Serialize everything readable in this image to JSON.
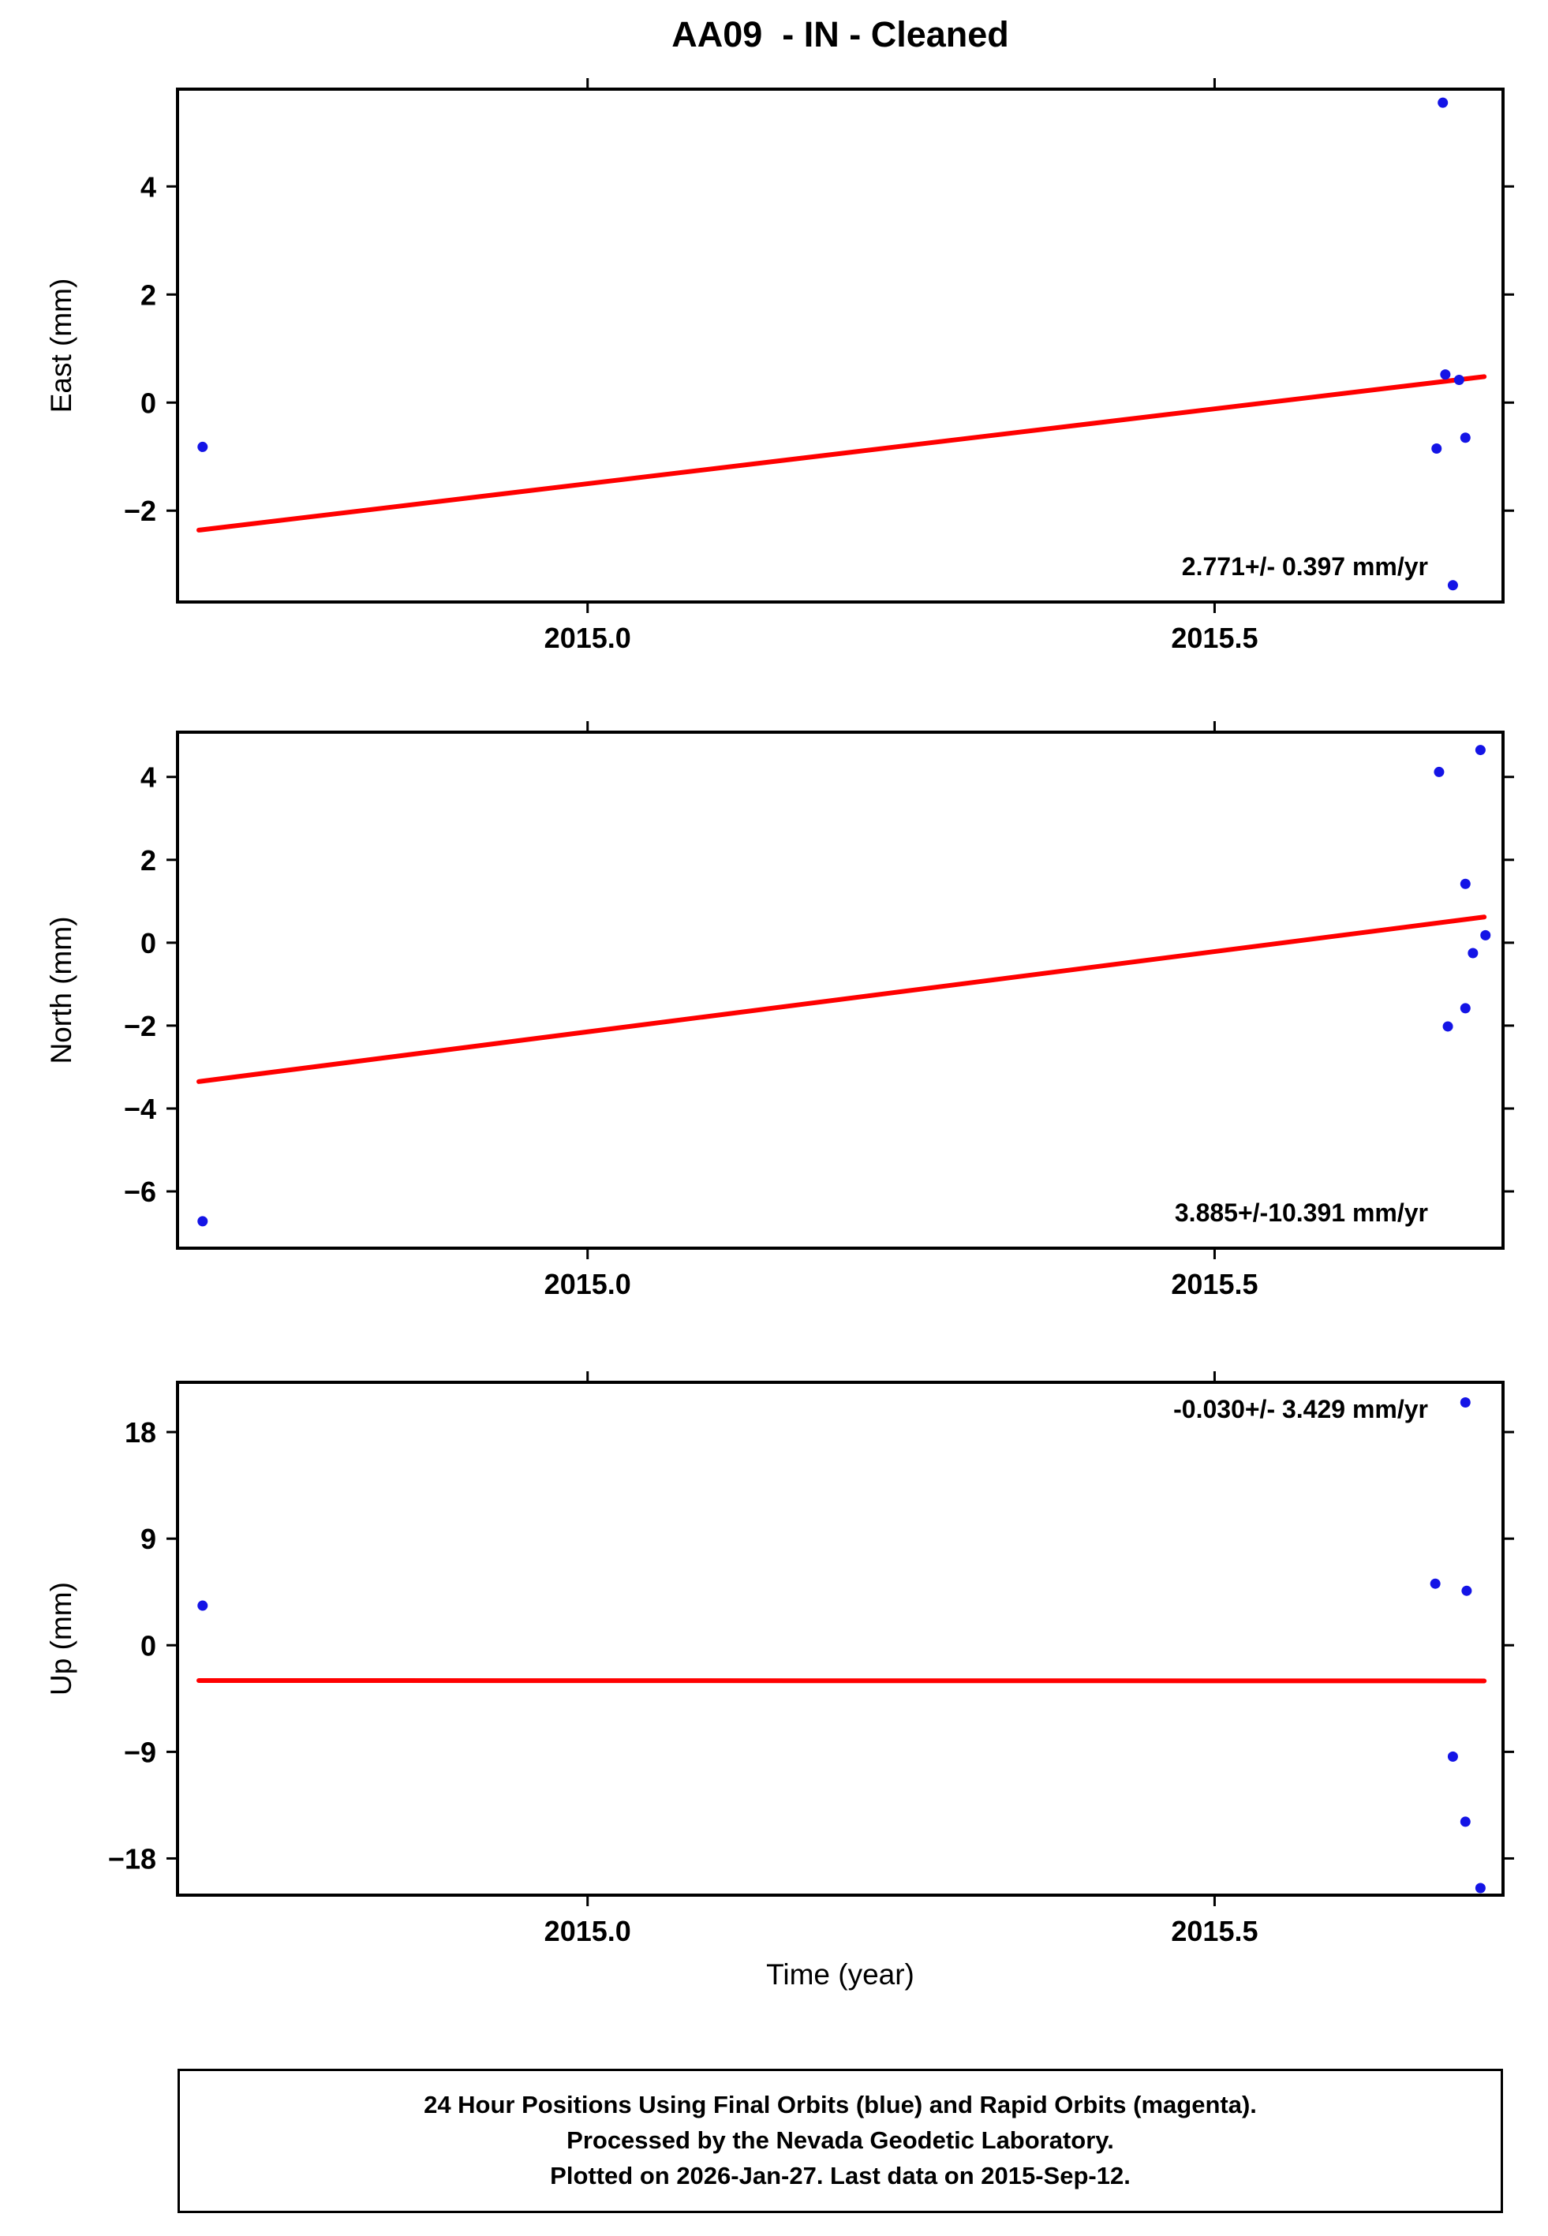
{
  "title": "AA09  - IN - Cleaned",
  "xlabel": "Time (year)",
  "colors": {
    "points": "#1414e6",
    "trend": "#ff0000",
    "frame": "#000000"
  },
  "footer": {
    "lines": [
      "24 Hour Positions Using Final Orbits (blue) and Rapid Orbits (magenta).",
      "Processed by the Nevada Geodetic Laboratory.",
      "Plotted on 2026-Jan-27. Last data on 2015-Sep-12."
    ]
  },
  "chart_data": [
    {
      "type": "scatter",
      "series_name": "East",
      "ylabel": "East (mm)",
      "rate_label": "2.771+/- 0.397 mm/yr",
      "xlim": [
        2014.673,
        2015.73
      ],
      "ylim": [
        -3.69,
        5.8
      ],
      "xticks": [
        2015.0,
        2015.5
      ],
      "xtick_labels": [
        "2015.0",
        "2015.5"
      ],
      "yticks": [
        -2,
        0,
        2,
        4
      ],
      "points": [
        [
          2014.693,
          -0.82
        ],
        [
          2015.682,
          5.55
        ],
        [
          2015.684,
          0.52
        ],
        [
          2015.695,
          0.42
        ],
        [
          2015.7,
          -0.65
        ],
        [
          2015.677,
          -0.85
        ],
        [
          2015.69,
          -3.38
        ]
      ],
      "trend": [
        [
          2014.69,
          -2.36
        ],
        [
          2015.715,
          0.48
        ]
      ]
    },
    {
      "type": "scatter",
      "series_name": "North",
      "ylabel": "North (mm)",
      "rate_label": "3.885+/-10.391 mm/yr",
      "xlim": [
        2014.673,
        2015.73
      ],
      "ylim": [
        -7.37,
        5.08
      ],
      "xticks": [
        2015.0,
        2015.5
      ],
      "xtick_labels": [
        "2015.0",
        "2015.5"
      ],
      "yticks": [
        -6,
        -4,
        -2,
        0,
        2,
        4
      ],
      "points": [
        [
          2014.693,
          -6.72
        ],
        [
          2015.712,
          4.65
        ],
        [
          2015.679,
          4.12
        ],
        [
          2015.7,
          1.42
        ],
        [
          2015.716,
          0.18
        ],
        [
          2015.706,
          -0.25
        ],
        [
          2015.7,
          -1.58
        ],
        [
          2015.686,
          -2.02
        ]
      ],
      "trend": [
        [
          2014.69,
          -3.35
        ],
        [
          2015.715,
          0.62
        ]
      ]
    },
    {
      "type": "scatter",
      "series_name": "Up",
      "ylabel": "Up (mm)",
      "rate_label": "-0.030+/- 3.429 mm/yr",
      "xlim": [
        2014.673,
        2015.73
      ],
      "ylim": [
        -21.1,
        22.2
      ],
      "xticks": [
        2015.0,
        2015.5
      ],
      "xtick_labels": [
        "2015.0",
        "2015.5"
      ],
      "yticks": [
        -18,
        -9,
        0,
        9,
        18
      ],
      "points": [
        [
          2014.693,
          3.35
        ],
        [
          2015.7,
          20.5
        ],
        [
          2015.676,
          5.2
        ],
        [
          2015.701,
          4.6
        ],
        [
          2015.69,
          -9.4
        ],
        [
          2015.7,
          -14.9
        ],
        [
          2015.712,
          -20.5
        ]
      ],
      "trend": [
        [
          2014.69,
          -2.98
        ],
        [
          2015.715,
          -3.01
        ]
      ]
    }
  ]
}
